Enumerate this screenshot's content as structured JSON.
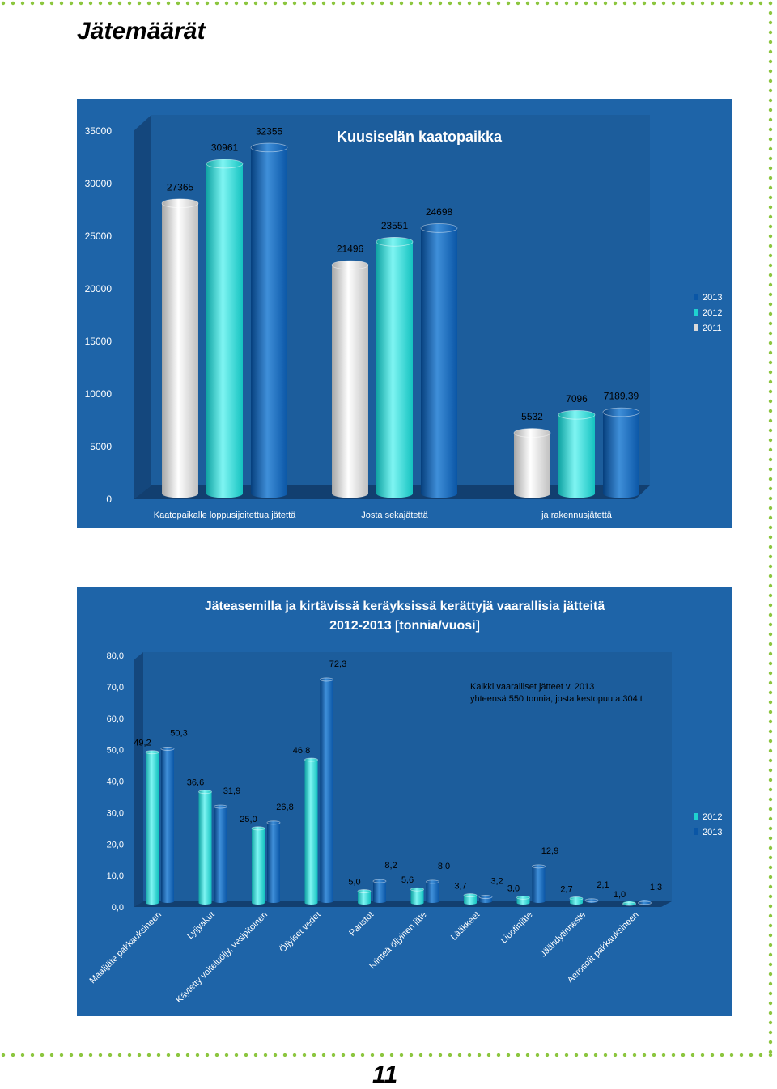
{
  "page": {
    "title": "Jätemäärät",
    "page_number": "11"
  },
  "colors": {
    "panel_bg": "#1e64a8",
    "panel_dark": "#174f88",
    "series_2011": "#d9d9d9",
    "series_2012": "#1fd2d0",
    "series_2013": "#0a56a6",
    "dots": "#8cc63f"
  },
  "chart_data": [
    {
      "type": "bar",
      "title": "Kuusiselän kaatopaikka",
      "categories": [
        "Kaatopaikalle loppusijoitettua jätettä",
        "Josta sekajätettä",
        "ja rakennusjätettä"
      ],
      "series": [
        {
          "name": "2011",
          "values": [
            27365,
            21496,
            5532
          ],
          "labels": [
            "27365",
            "21496",
            "5532"
          ]
        },
        {
          "name": "2012",
          "values": [
            30961,
            23551,
            7096
          ],
          "labels": [
            "30961",
            "23551",
            "7096"
          ]
        },
        {
          "name": "2013",
          "values": [
            32355,
            24698,
            7189.39
          ],
          "labels": [
            "32355",
            "24698",
            "7189,39"
          ]
        }
      ],
      "legend_order": [
        "2013",
        "2012",
        "2011"
      ],
      "ylim": [
        0,
        35000
      ],
      "yticks": [
        "0",
        "5000",
        "10000",
        "15000",
        "20000",
        "25000",
        "30000",
        "35000"
      ],
      "legend_position": "right",
      "grid": false
    },
    {
      "type": "bar",
      "title_line1": "Jäteasemilla  ja kirtävissä keräyksissä kerättyjä vaarallisia jätteitä",
      "title_line2": "2012-2013 [tonnia/vuosi]",
      "annotation_line1": "Kaikki vaaralliset jätteet v. 2013",
      "annotation_line2": "yhteensä 550 tonnia, josta kestopuuta 304 t",
      "categories": [
        "Maalijäte pakkauksineen",
        "Lyijyakut",
        "Käytetty voiteluöljy, vesipitoinen",
        "Öljyiset vedet",
        "Paristot",
        "Kiinteä öljyinen jäte",
        "Lääkkeet",
        "Liuotinjäte",
        "Jäähdytinneste",
        "Aerosolit pakkauksineen"
      ],
      "series": [
        {
          "name": "2012",
          "values": [
            49.2,
            36.6,
            25.0,
            46.8,
            5.0,
            5.6,
            3.7,
            3.0,
            2.7,
            1.0
          ],
          "labels": [
            "49,2",
            "36,6",
            "25,0",
            "46,8",
            "5,0",
            "5,6",
            "3,7",
            "3,0",
            "2,7",
            "1,0"
          ]
        },
        {
          "name": "2013",
          "values": [
            50.3,
            31.9,
            26.8,
            72.3,
            8.2,
            8.0,
            3.2,
            12.9,
            2.1,
            1.3
          ],
          "labels": [
            "50,3",
            "31,9",
            "26,8",
            "72,3",
            "8,2",
            "8,0",
            "3,2",
            "12,9",
            "2,1",
            "1,3"
          ]
        }
      ],
      "legend_order": [
        "2012",
        "2013"
      ],
      "ylim": [
        0,
        80
      ],
      "yticks": [
        "0,0",
        "10,0",
        "20,0",
        "30,0",
        "40,0",
        "50,0",
        "60,0",
        "70,0",
        "80,0"
      ],
      "legend_position": "right",
      "grid": false
    }
  ]
}
